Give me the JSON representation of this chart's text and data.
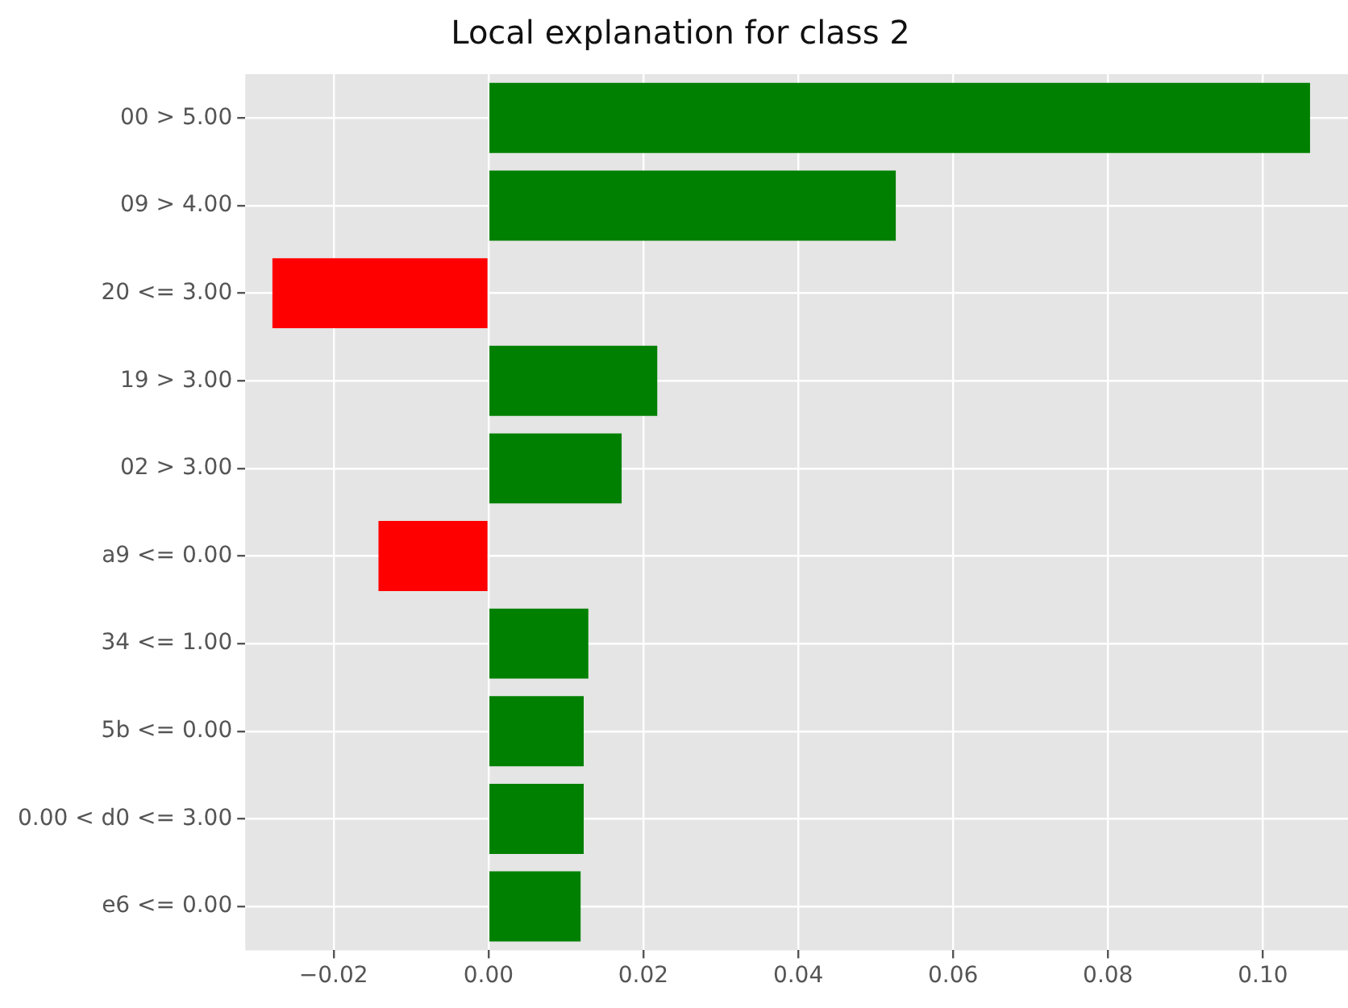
{
  "chart_data": {
    "type": "bar",
    "orientation": "horizontal",
    "title": "Local explanation for class 2",
    "categories": [
      "00 > 5.00",
      "09 > 4.00",
      "20 <= 3.00",
      "19 > 3.00",
      "02 > 3.00",
      "a9 <= 0.00",
      "34 <= 1.00",
      "5b <= 0.00",
      "0.00 < d0 <= 3.00",
      "e6 <= 0.00"
    ],
    "values": [
      0.1061,
      0.0526,
      -0.0279,
      0.0218,
      0.0172,
      -0.0142,
      0.0129,
      0.0123,
      0.0123,
      0.0119
    ],
    "colors": [
      "#008000",
      "#008000",
      "#ff0000",
      "#008000",
      "#008000",
      "#ff0000",
      "#008000",
      "#008000",
      "#008000",
      "#008000"
    ],
    "xlim": [
      -0.0314,
      0.111
    ],
    "xticks": [
      {
        "value": -0.02,
        "label": "−0.02"
      },
      {
        "value": 0,
        "label": "0.00"
      },
      {
        "value": 0.02,
        "label": "0.02"
      },
      {
        "value": 0.04,
        "label": "0.04"
      },
      {
        "value": 0.06,
        "label": "0.06"
      },
      {
        "value": 0.08,
        "label": "0.08"
      },
      {
        "value": 0.1,
        "label": "0.10"
      }
    ],
    "grid": true,
    "legend": false
  }
}
